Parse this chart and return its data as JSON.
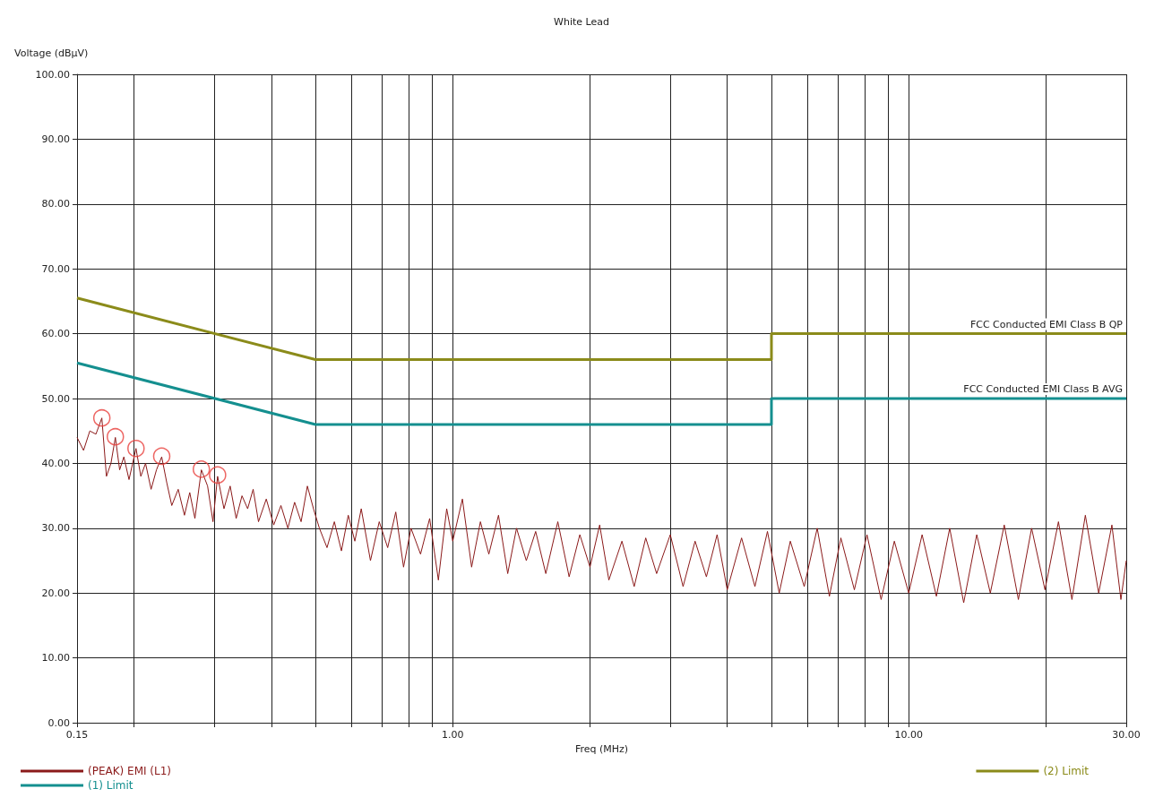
{
  "chart_data": {
    "type": "line",
    "title": "White Lead",
    "xlabel": "Freq (MHz)",
    "ylabel": "Voltage (dBµV)",
    "log": "x",
    "grid": true,
    "legend": "bottom",
    "marker": "none",
    "xlim": [
      0.15,
      30
    ],
    "ylim": [
      0,
      100
    ],
    "xticks": [
      {
        "value": 0.15,
        "label": "0.15"
      },
      {
        "value": 0.2,
        "label": null
      },
      {
        "value": 0.3,
        "label": null
      },
      {
        "value": 0.4,
        "label": null
      },
      {
        "value": 0.5,
        "label": null
      },
      {
        "value": 0.6,
        "label": null
      },
      {
        "value": 0.7,
        "label": null
      },
      {
        "value": 0.8,
        "label": null
      },
      {
        "value": 0.9,
        "label": null
      },
      {
        "value": 1,
        "label": "1.00"
      },
      {
        "value": 2,
        "label": null
      },
      {
        "value": 3,
        "label": null
      },
      {
        "value": 4,
        "label": null
      },
      {
        "value": 5,
        "label": null
      },
      {
        "value": 6,
        "label": null
      },
      {
        "value": 7,
        "label": null
      },
      {
        "value": 8,
        "label": null
      },
      {
        "value": 9,
        "label": null
      },
      {
        "value": 10,
        "label": "10.00"
      },
      {
        "value": 20,
        "label": null
      },
      {
        "value": 30,
        "label": "30.00"
      }
    ],
    "yticks": [
      {
        "value": 0,
        "label": "0.00"
      },
      {
        "value": 10,
        "label": "10.00"
      },
      {
        "value": 20,
        "label": "20.00"
      },
      {
        "value": 30,
        "label": "30.00"
      },
      {
        "value": 40,
        "label": "40.00"
      },
      {
        "value": 50,
        "label": "50.00"
      },
      {
        "value": 60,
        "label": "60.00"
      },
      {
        "value": 70,
        "label": "70.00"
      },
      {
        "value": 80,
        "label": "80.00"
      },
      {
        "value": 90,
        "label": "90.00"
      },
      {
        "value": 100,
        "label": "100.00"
      }
    ],
    "series": [
      {
        "name": "(PEAK) EMI (L1)",
        "color": "#8b1a1a",
        "x": [
          0.15,
          0.155,
          0.16,
          0.165,
          0.17,
          0.174,
          0.178,
          0.182,
          0.186,
          0.19,
          0.195,
          0.202,
          0.207,
          0.212,
          0.218,
          0.224,
          0.23,
          0.236,
          0.242,
          0.25,
          0.258,
          0.265,
          0.272,
          0.281,
          0.29,
          0.298,
          0.305,
          0.315,
          0.325,
          0.335,
          0.345,
          0.355,
          0.365,
          0.375,
          0.39,
          0.405,
          0.42,
          0.435,
          0.45,
          0.465,
          0.48,
          0.495,
          0.51,
          0.53,
          0.55,
          0.57,
          0.59,
          0.61,
          0.63,
          0.66,
          0.69,
          0.72,
          0.75,
          0.78,
          0.81,
          0.85,
          0.89,
          0.93,
          0.97,
          1.0,
          1.05,
          1.1,
          1.15,
          1.2,
          1.26,
          1.32,
          1.38,
          1.45,
          1.52,
          1.6,
          1.7,
          1.8,
          1.9,
          2.0,
          2.1,
          2.2,
          2.35,
          2.5,
          2.65,
          2.8,
          3.0,
          3.2,
          3.4,
          3.6,
          3.8,
          4.0,
          4.3,
          4.6,
          4.9,
          5.2,
          5.5,
          5.9,
          6.3,
          6.7,
          7.1,
          7.6,
          8.1,
          8.7,
          9.3,
          10,
          10.7,
          11.5,
          12.3,
          13.2,
          14.1,
          15.1,
          16.2,
          17.4,
          18.6,
          19.9,
          21.3,
          22.8,
          24.4,
          26.1,
          27.9,
          29.2,
          30
        ],
        "values": [
          44,
          42,
          45,
          44.5,
          47,
          38,
          40,
          44,
          39,
          41,
          37.5,
          42.3,
          38,
          40,
          36,
          39,
          41,
          37,
          33.5,
          36,
          32,
          35.5,
          31.5,
          39,
          36.5,
          31,
          38,
          33,
          36.5,
          31.5,
          35,
          33,
          36,
          31,
          34.5,
          30.5,
          33.5,
          30,
          34,
          31,
          36.5,
          33,
          30,
          27,
          31,
          26.5,
          32,
          28,
          33,
          25,
          31,
          27,
          32.5,
          24,
          30,
          26,
          31.5,
          22,
          33,
          28,
          34.5,
          24,
          31,
          26,
          32,
          23,
          30,
          25,
          29.5,
          23,
          31,
          22.5,
          29,
          24,
          30.5,
          22,
          28,
          21,
          28.5,
          23,
          29,
          21,
          28,
          22.5,
          29,
          20.5,
          28.5,
          21,
          29.5,
          20,
          28,
          21,
          30,
          19.5,
          28.5,
          20.5,
          29,
          19,
          28,
          20,
          29,
          19.5,
          30,
          18.5,
          29,
          20,
          30.5,
          19,
          30,
          20.5,
          31,
          19,
          32,
          20,
          30.5,
          19,
          25
        ]
      },
      {
        "type": "scatter",
        "marker": "circle",
        "color": "#e8403c",
        "x": [
          0.17,
          0.182,
          0.202,
          0.23,
          0.281,
          0.305
        ],
        "values": [
          47,
          44.1,
          42.3,
          41.1,
          39.1,
          38.2
        ]
      },
      {
        "name": "(1) Limit",
        "color": "#148f8f",
        "x": [
          0.15,
          0.5,
          5,
          5,
          30
        ],
        "values": [
          55.5,
          46,
          46,
          50,
          50
        ]
      },
      {
        "name": "(2) Limit",
        "color": "#8b8b1a",
        "x": [
          0.15,
          0.5,
          5,
          5,
          30
        ],
        "values": [
          65.5,
          56,
          56,
          60,
          60
        ]
      }
    ],
    "annotations": [
      {
        "text": "FCC Conducted EMI Class B QP",
        "x": 30,
        "y": 60
      },
      {
        "text": "FCC Conducted EMI Class B AVG",
        "x": 30,
        "y": 50
      }
    ]
  }
}
